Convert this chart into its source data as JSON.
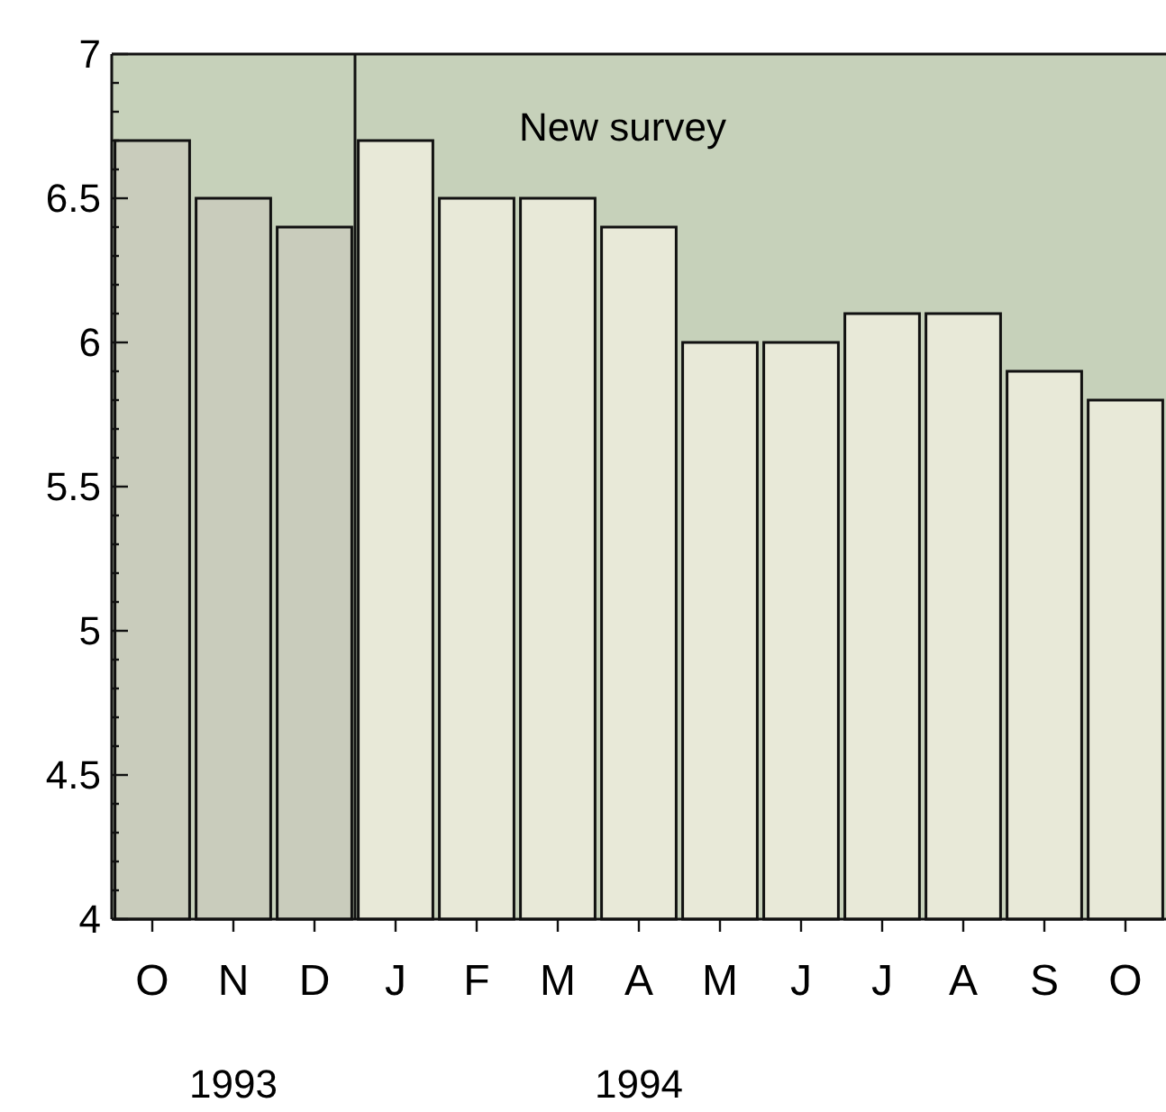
{
  "chart_data": {
    "type": "bar",
    "categories": [
      "O",
      "N",
      "D",
      "J",
      "F",
      "M",
      "A",
      "M",
      "J",
      "J",
      "A",
      "S",
      "O"
    ],
    "values": [
      6.7,
      6.5,
      6.4,
      6.7,
      6.5,
      6.5,
      6.4,
      6.0,
      6.0,
      6.1,
      6.1,
      5.9,
      5.8
    ],
    "colors": [
      "#c9ccbc",
      "#c9ccbc",
      "#c9ccbc",
      "#e8e9d8",
      "#e8e9d8",
      "#e8e9d8",
      "#e8e9d8",
      "#e8e9d8",
      "#e8e9d8",
      "#e8e9d8",
      "#e8e9d8",
      "#e8e9d8",
      "#e8e9d8"
    ],
    "ylim": [
      4,
      7
    ],
    "yticks": [
      4,
      {
        "value": 4.1,
        "label": null
      },
      {
        "value": 4.2,
        "label": null
      },
      {
        "value": 4.3,
        "label": null
      },
      {
        "value": 4.4,
        "label": null
      },
      4.5,
      {
        "value": 4.6,
        "label": null
      },
      {
        "value": 4.7,
        "label": null
      },
      {
        "value": 4.8,
        "label": null
      },
      {
        "value": 4.9,
        "label": null
      },
      5,
      {
        "value": 5.1,
        "label": null
      },
      {
        "value": 5.2,
        "label": null
      },
      {
        "value": 5.3,
        "label": null
      },
      {
        "value": 5.4,
        "label": null
      },
      5.5,
      {
        "value": 5.6,
        "label": null
      },
      {
        "value": 5.7,
        "label": null
      },
      {
        "value": 5.8,
        "label": null
      },
      {
        "value": 5.9,
        "label": null
      },
      6,
      {
        "value": 6.1,
        "label": null
      },
      {
        "value": 6.2,
        "label": null
      },
      {
        "value": 6.3,
        "label": null
      },
      {
        "value": 6.4,
        "label": null
      },
      6.5,
      {
        "value": 6.6,
        "label": null
      },
      {
        "value": 6.7,
        "label": null
      },
      {
        "value": 6.8,
        "label": null
      },
      {
        "value": 6.9,
        "label": null
      },
      7
    ],
    "annotations": [
      "New survey",
      "1993",
      "1994"
    ],
    "grid": false
  }
}
